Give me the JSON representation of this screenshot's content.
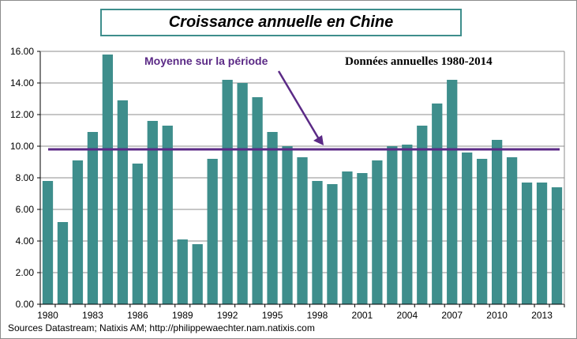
{
  "title": "Croissance  annuelle en Chine",
  "source": "Sources Datastream; Natixis AM; http://philippewaechter.nam.natixis.com",
  "annotations": {
    "mean_label": "Moyenne sur la période",
    "period_label": "Données annuelles  1980-2014"
  },
  "colors": {
    "bar": "#3e8e8c",
    "mean_line": "#5b2a86",
    "grid": "#8c8c8c"
  },
  "chart_data": {
    "type": "bar",
    "years": [
      1980,
      1981,
      1982,
      1983,
      1984,
      1985,
      1986,
      1987,
      1988,
      1989,
      1990,
      1991,
      1992,
      1993,
      1994,
      1995,
      1996,
      1997,
      1998,
      1999,
      2000,
      2001,
      2002,
      2003,
      2004,
      2005,
      2006,
      2007,
      2008,
      2009,
      2010,
      2011,
      2012,
      2013,
      2014
    ],
    "values": [
      7.8,
      5.2,
      9.1,
      10.9,
      15.8,
      12.9,
      8.9,
      11.6,
      11.3,
      4.1,
      3.8,
      9.2,
      14.2,
      14.0,
      13.1,
      10.9,
      10.0,
      9.3,
      7.8,
      7.6,
      8.4,
      8.3,
      9.1,
      10.0,
      10.1,
      11.3,
      12.7,
      14.2,
      9.6,
      9.2,
      10.4,
      9.3,
      7.7,
      7.7,
      7.4
    ],
    "x_tick_labels": [
      "1980",
      "1983",
      "1986",
      "1989",
      "1992",
      "1995",
      "1998",
      "2001",
      "2004",
      "2007",
      "2010",
      "2013"
    ],
    "y_tick_labels": [
      "0.00",
      "2.00",
      "4.00",
      "6.00",
      "8.00",
      "10.00",
      "12.00",
      "14.00",
      "16.00"
    ],
    "ylim": [
      0,
      16
    ],
    "mean": 9.8,
    "grid": true,
    "legend": "none"
  }
}
